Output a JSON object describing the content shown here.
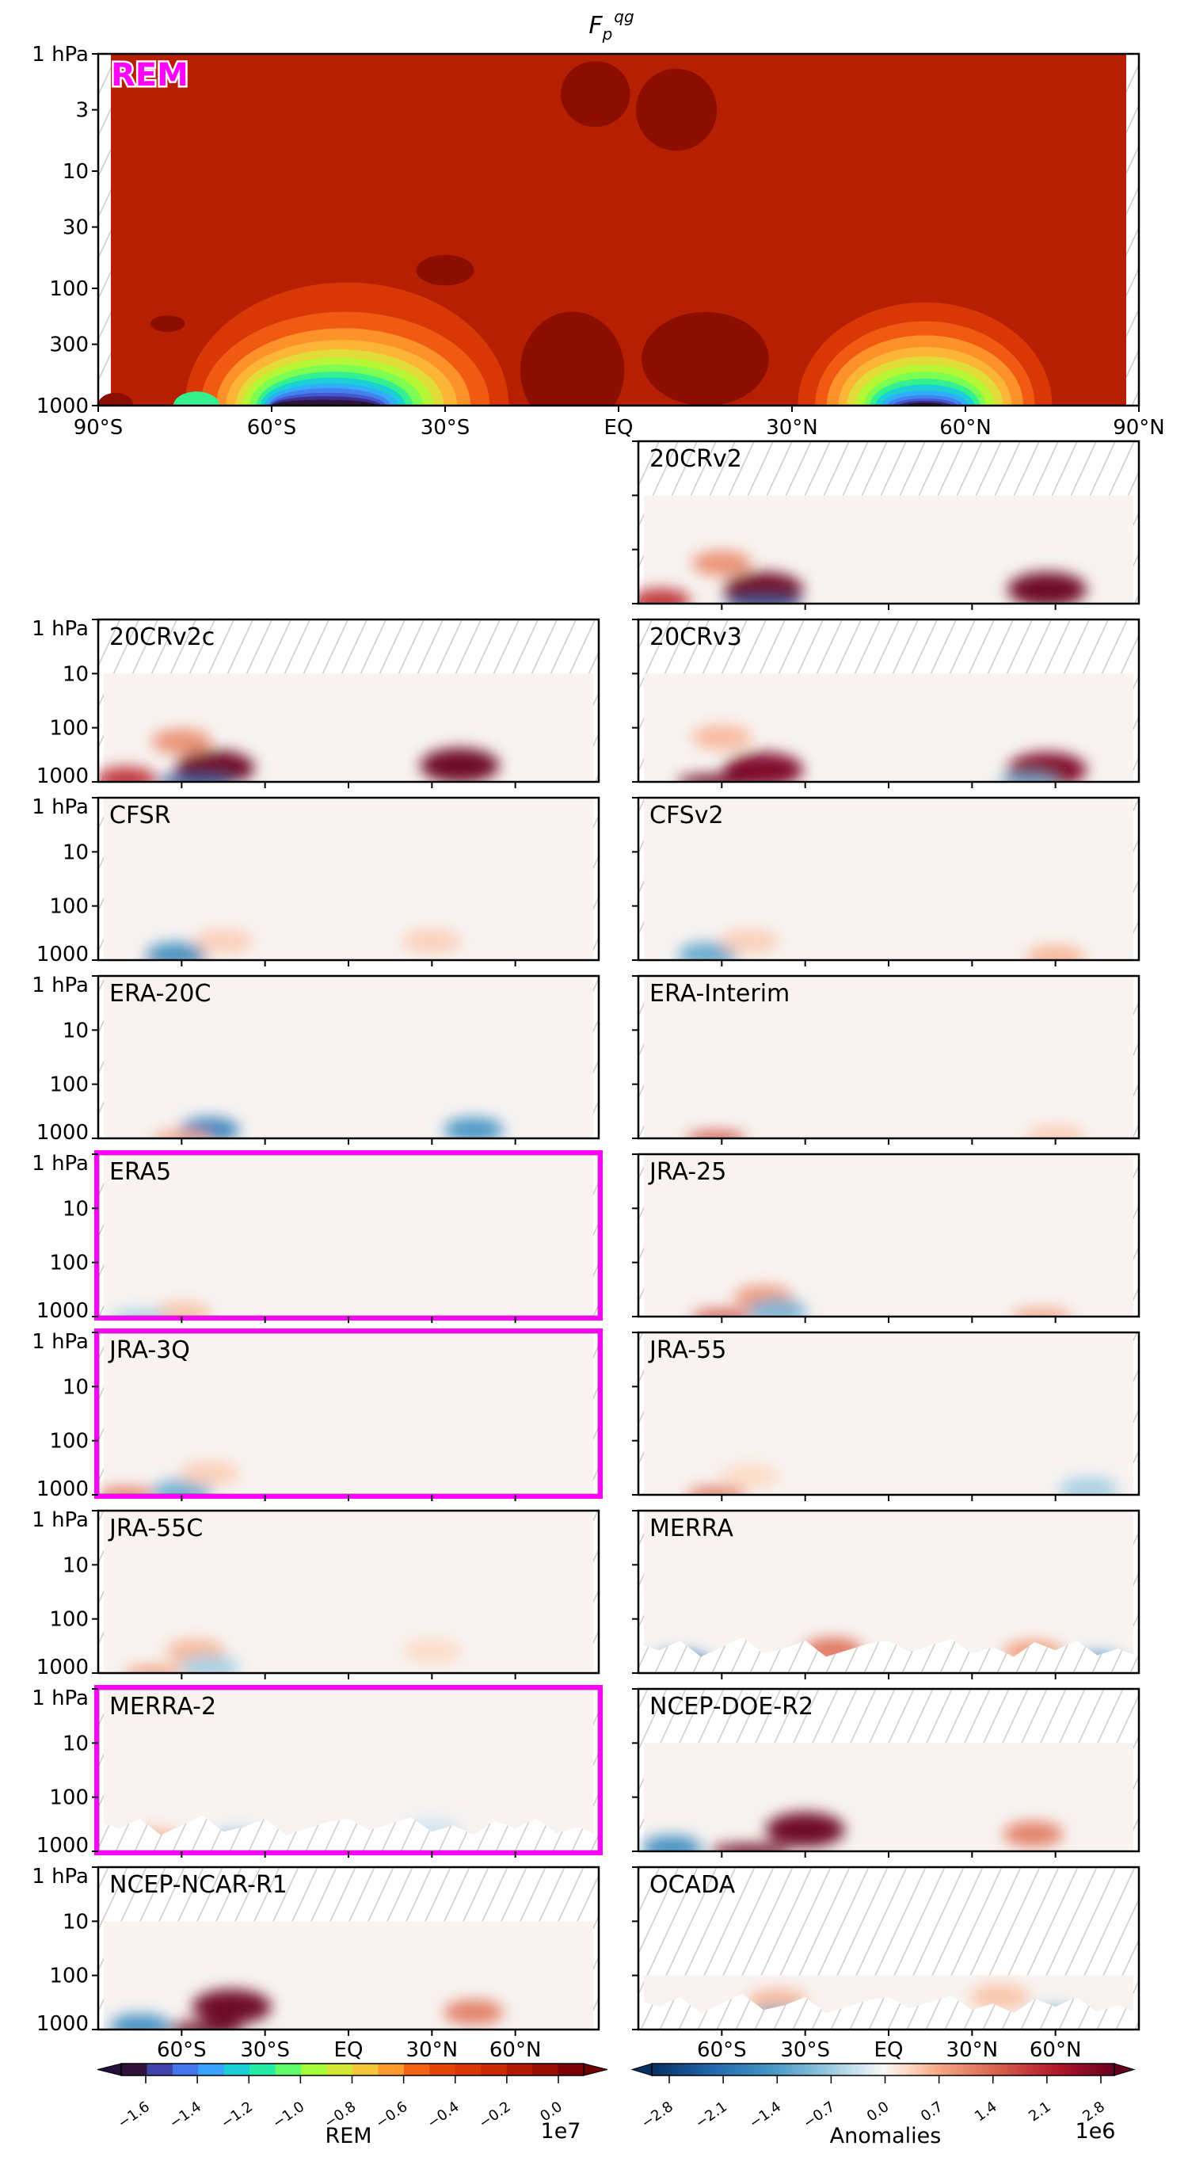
{
  "chart_data": {
    "type": "heatmap",
    "title": {
      "main": "F",
      "sub": "p",
      "sup": "qg"
    },
    "xlim": [
      -90,
      90
    ],
    "ylim_hPa": [
      1000,
      1
    ],
    "rem_x_ticks": [
      -90,
      -60,
      -30,
      0,
      30,
      60,
      90
    ],
    "rem_x_tick_labels": [
      "90°S",
      "60°S",
      "30°S",
      "EQ",
      "30°N",
      "60°N",
      "90°N"
    ],
    "panel_x_ticks": [
      -60,
      -30,
      0,
      30,
      60
    ],
    "panel_x_tick_labels": [
      "60°S",
      "30°S",
      "EQ",
      "30°N",
      "60°N"
    ],
    "rem_y_ticks": [
      1,
      3,
      10,
      30,
      100,
      300,
      1000
    ],
    "rem_y_tick_labels": [
      "1 hPa",
      "3",
      "10",
      "30",
      "100",
      "300",
      "1000"
    ],
    "panel_y_ticks": [
      1,
      10,
      100,
      1000
    ],
    "panel_y_tick_labels": [
      "1 hPa",
      "10",
      "100",
      "1000"
    ],
    "highlight_color": "#ff00ff",
    "rem": {
      "label": "REM"
    },
    "panels": [
      {
        "name": "20CRv2",
        "highlighted": false,
        "hatch_above_hPa": 10,
        "hatch_surface": false,
        "features": [
          {
            "lat": -45,
            "p": 550,
            "v": 3
          },
          {
            "lat": 57,
            "p": 550,
            "v": 3
          },
          {
            "lat": -60,
            "p": 180,
            "v": 1
          },
          {
            "lat": -45,
            "p": 990,
            "v": -2.5
          },
          {
            "lat": -82,
            "p": 900,
            "v": 2
          }
        ]
      },
      {
        "name": "20CRv2c",
        "highlighted": false,
        "hatch_above_hPa": 10,
        "hatch_surface": false,
        "features": [
          {
            "lat": -48,
            "p": 550,
            "v": 3
          },
          {
            "lat": 40,
            "p": 500,
            "v": 3
          },
          {
            "lat": -60,
            "p": 180,
            "v": 1
          },
          {
            "lat": -55,
            "p": 990,
            "v": -2.5
          },
          {
            "lat": -80,
            "p": 900,
            "v": 2
          }
        ]
      },
      {
        "name": "20CRv3",
        "highlighted": false,
        "hatch_above_hPa": 10,
        "hatch_surface": false,
        "features": [
          {
            "lat": -45,
            "p": 600,
            "v": 2.8
          },
          {
            "lat": 57,
            "p": 600,
            "v": 2.8
          },
          {
            "lat": -62,
            "p": 990,
            "v": 3
          },
          {
            "lat": -60,
            "p": 150,
            "v": 0.6
          },
          {
            "lat": 50,
            "p": 990,
            "v": -1.2
          }
        ]
      },
      {
        "name": "CFSR",
        "highlighted": false,
        "hatch_above_hPa": null,
        "hatch_surface": false,
        "features": [
          {
            "lat": -62,
            "p": 990,
            "v": 2
          },
          {
            "lat": -62,
            "p": 800,
            "v": -1.5
          },
          {
            "lat": 30,
            "p": 450,
            "v": 0.4
          },
          {
            "lat": -45,
            "p": 450,
            "v": 0.4
          }
        ]
      },
      {
        "name": "CFSv2",
        "highlighted": false,
        "hatch_above_hPa": null,
        "hatch_surface": false,
        "features": [
          {
            "lat": -65,
            "p": 800,
            "v": -1.2
          },
          {
            "lat": 60,
            "p": 900,
            "v": 0.6
          },
          {
            "lat": -50,
            "p": 450,
            "v": 0.4
          }
        ]
      },
      {
        "name": "ERA-20C",
        "highlighted": false,
        "hatch_above_hPa": null,
        "hatch_surface": false,
        "features": [
          {
            "lat": -50,
            "p": 700,
            "v": -1.8
          },
          {
            "lat": 45,
            "p": 700,
            "v": -1.5
          },
          {
            "lat": -60,
            "p": 990,
            "v": 0.8
          }
        ]
      },
      {
        "name": "ERA-Interim",
        "highlighted": false,
        "hatch_above_hPa": null,
        "hatch_surface": false,
        "features": [
          {
            "lat": -62,
            "p": 990,
            "v": 1.6
          },
          {
            "lat": 60,
            "p": 950,
            "v": 0.4
          }
        ]
      },
      {
        "name": "ERA5",
        "highlighted": true,
        "hatch_above_hPa": null,
        "hatch_surface": false,
        "features": [
          {
            "lat": -60,
            "p": 900,
            "v": 0.5
          },
          {
            "lat": -75,
            "p": 990,
            "v": -0.6
          }
        ]
      },
      {
        "name": "JRA-25",
        "highlighted": false,
        "hatch_above_hPa": null,
        "hatch_surface": false,
        "features": [
          {
            "lat": -45,
            "p": 450,
            "v": 0.9
          },
          {
            "lat": -40,
            "p": 800,
            "v": -1
          },
          {
            "lat": -60,
            "p": 990,
            "v": 1.6
          },
          {
            "lat": 55,
            "p": 960,
            "v": 0.8
          }
        ]
      },
      {
        "name": "JRA-3Q",
        "highlighted": true,
        "hatch_above_hPa": null,
        "hatch_surface": false,
        "features": [
          {
            "lat": -60,
            "p": 900,
            "v": -1.1
          },
          {
            "lat": -80,
            "p": 990,
            "v": 1.3
          },
          {
            "lat": -50,
            "p": 400,
            "v": 0.4
          }
        ]
      },
      {
        "name": "JRA-55",
        "highlighted": false,
        "hatch_above_hPa": null,
        "hatch_surface": false,
        "features": [
          {
            "lat": -62,
            "p": 960,
            "v": 1.3
          },
          {
            "lat": 72,
            "p": 800,
            "v": -0.6
          },
          {
            "lat": -50,
            "p": 450,
            "v": 0.3
          }
        ]
      },
      {
        "name": "JRA-55C",
        "highlighted": false,
        "hatch_above_hPa": null,
        "hatch_surface": false,
        "features": [
          {
            "lat": -55,
            "p": 400,
            "v": 0.6
          },
          {
            "lat": -50,
            "p": 800,
            "v": -0.6
          },
          {
            "lat": 30,
            "p": 400,
            "v": 0.3
          },
          {
            "lat": -70,
            "p": 980,
            "v": 0.8
          }
        ]
      },
      {
        "name": "MERRA",
        "highlighted": false,
        "hatch_above_hPa": null,
        "hatch_surface": true,
        "features": [
          {
            "lat": -20,
            "p": 380,
            "v": 1.3
          },
          {
            "lat": 52,
            "p": 420,
            "v": 0.8
          },
          {
            "lat": -75,
            "p": 700,
            "v": -2
          },
          {
            "lat": 75,
            "p": 700,
            "v": -1.2
          }
        ]
      },
      {
        "name": "MERRA-2",
        "highlighted": true,
        "hatch_above_hPa": null,
        "hatch_surface": true,
        "features": [
          {
            "lat": -70,
            "p": 650,
            "v": 0.6
          },
          {
            "lat": -40,
            "p": 650,
            "v": -0.6
          },
          {
            "lat": 30,
            "p": 420,
            "v": -0.3
          }
        ]
      },
      {
        "name": "NCEP-DOE-R2",
        "highlighted": false,
        "hatch_above_hPa": 10,
        "hatch_surface": false,
        "features": [
          {
            "lat": -30,
            "p": 400,
            "v": 3
          },
          {
            "lat": -50,
            "p": 990,
            "v": 3
          },
          {
            "lat": 52,
            "p": 480,
            "v": 1.2
          },
          {
            "lat": -78,
            "p": 880,
            "v": -1.6
          }
        ]
      },
      {
        "name": "NCEP-NCAR-R1",
        "highlighted": false,
        "hatch_above_hPa": 10,
        "hatch_surface": false,
        "features": [
          {
            "lat": -42,
            "p": 380,
            "v": 3
          },
          {
            "lat": -52,
            "p": 990,
            "v": 3
          },
          {
            "lat": 45,
            "p": 480,
            "v": 1.2
          },
          {
            "lat": -75,
            "p": 880,
            "v": -1.6
          }
        ]
      },
      {
        "name": "OCADA",
        "highlighted": false,
        "hatch_above_hPa": 100,
        "hatch_surface": true,
        "features": [
          {
            "lat": -40,
            "p": 300,
            "v": 0.6
          },
          {
            "lat": -40,
            "p": 650,
            "v": -1
          },
          {
            "lat": 60,
            "p": 650,
            "v": -1
          },
          {
            "lat": 40,
            "p": 250,
            "v": 0.5
          }
        ]
      }
    ],
    "colorbars": [
      {
        "label": "REM",
        "scale": "1e7",
        "cmap": "turbo",
        "ticks": [
          -1.6,
          -1.4,
          -1.2,
          -1.0,
          -0.8,
          -0.6,
          -0.4,
          -0.2,
          0.0
        ],
        "tick_labels": [
          "−1.6",
          "−1.4",
          "−1.2",
          "−1.0",
          "−0.8",
          "−0.6",
          "−0.4",
          "−0.2",
          "0.0"
        ]
      },
      {
        "label": "Anomalies",
        "scale": "1e6",
        "cmap": "RdBu_r",
        "ticks": [
          -2.8,
          -2.1,
          -1.4,
          -0.7,
          0.0,
          0.7,
          1.4,
          2.1,
          2.8
        ],
        "tick_labels": [
          "−2.8",
          "−2.1",
          "−1.4",
          "−0.7",
          "0.0",
          "0.7",
          "1.4",
          "2.1",
          "2.8"
        ]
      }
    ]
  }
}
